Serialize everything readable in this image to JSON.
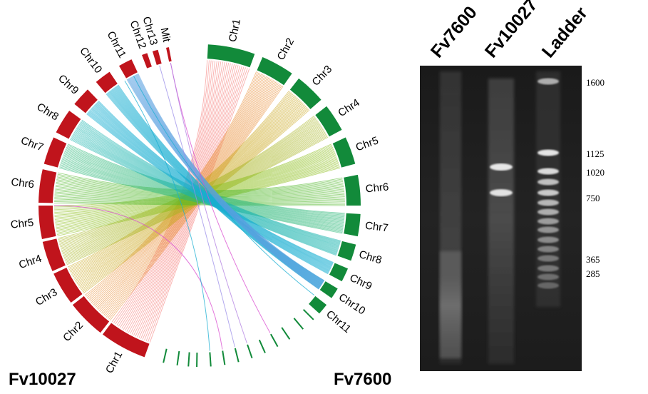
{
  "genomes": {
    "left": {
      "name": "Fv10027",
      "color": "#c0141c",
      "chromosomes": [
        "Chr1",
        "Chr2",
        "Chr3",
        "Chr4",
        "Chr5",
        "Chr6",
        "Chr7",
        "Chr8",
        "Chr9",
        "Chr10",
        "Chr11",
        "Chr12",
        "Chr13",
        "Mit"
      ]
    },
    "right": {
      "name": "Fv7600",
      "color": "#128a3a",
      "chromosomes": [
        "Chr1",
        "Chr2",
        "Chr3",
        "Chr4",
        "Chr5",
        "Chr6",
        "Chr7",
        "Chr8",
        "Chr9",
        "Chr10",
        "Chr11"
      ]
    }
  },
  "link_colors": {
    "Chr1": "#f4706c",
    "Chr2": "#e8862a",
    "Chr3": "#c9a416",
    "Chr4": "#a8b422",
    "Chr5": "#8cbd1c",
    "Chr6": "#52b82c",
    "Chr7": "#2eb87a",
    "Chr8": "#1bb4ae",
    "Chr9": "#1aaed2",
    "Chr10": "#5aa0e0",
    "Mit": "#d94cd0"
  },
  "gel": {
    "lanes": [
      "Fv7600",
      "Fv10027",
      "Ladder"
    ],
    "ladder_sizes": [
      "1600",
      "1125",
      "1020",
      "750",
      "365",
      "285"
    ]
  }
}
